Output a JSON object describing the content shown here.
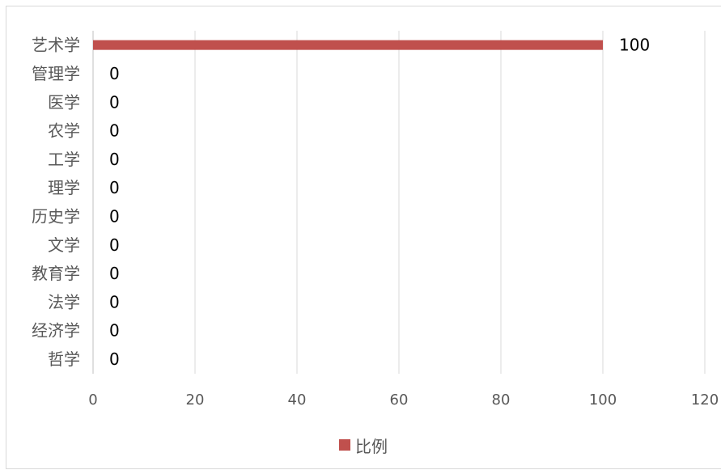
{
  "chart_data": {
    "type": "bar",
    "orientation": "horizontal",
    "categories": [
      "艺术学",
      "管理学",
      "医学",
      "农学",
      "工学",
      "理学",
      "历史学",
      "文学",
      "教育学",
      "法学",
      "经济学",
      "哲学"
    ],
    "series": [
      {
        "name": "比例",
        "values": [
          100,
          0,
          0,
          0,
          0,
          0,
          0,
          0,
          0,
          0,
          0,
          0
        ],
        "color": "#c0504d"
      }
    ],
    "xlim": [
      0,
      120
    ],
    "xticks": [
      0,
      20,
      40,
      60,
      80,
      100,
      120
    ],
    "grid": true,
    "gridlines": "vertical",
    "legend": "bottom"
  }
}
